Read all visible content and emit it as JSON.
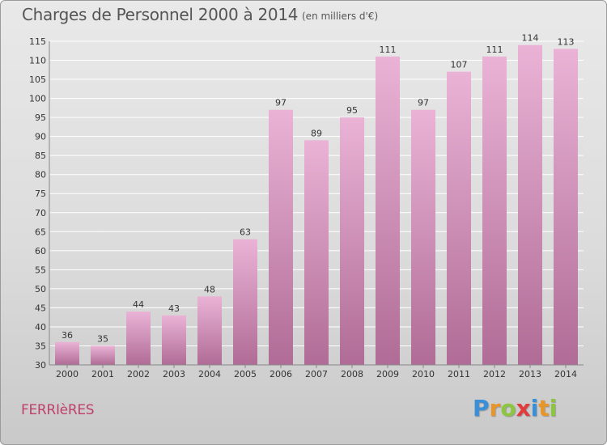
{
  "title": "Charges de Personnel 2000 à 2014",
  "subtitle": "(en milliers d'€)",
  "place": "FERRIèRES",
  "logo": {
    "letters": [
      "P",
      "r",
      "o",
      "x",
      "i",
      "t",
      "i"
    ],
    "colors": [
      "#3a8fd6",
      "#e8962a",
      "#8cc63f",
      "#e23b3b",
      "#3a8fd6",
      "#e8962a",
      "#8cc63f"
    ]
  },
  "colors": {
    "bar_light": "#eab3d6",
    "bar_dark": "#b06c96",
    "grid": "#ffffff",
    "text": "#333333"
  },
  "chart_data": {
    "type": "bar",
    "categories": [
      "2000",
      "2001",
      "2002",
      "2003",
      "2004",
      "2005",
      "2006",
      "2007",
      "2008",
      "2009",
      "2010",
      "2011",
      "2012",
      "2013",
      "2014"
    ],
    "values": [
      36,
      35,
      44,
      43,
      48,
      63,
      97,
      89,
      95,
      111,
      97,
      107,
      111,
      114,
      113
    ],
    "ylim": [
      30,
      115
    ],
    "yticks": [
      30,
      35,
      40,
      45,
      50,
      55,
      60,
      65,
      70,
      75,
      80,
      85,
      90,
      95,
      100,
      105,
      110,
      115
    ],
    "grid": true,
    "data_labels": true
  }
}
